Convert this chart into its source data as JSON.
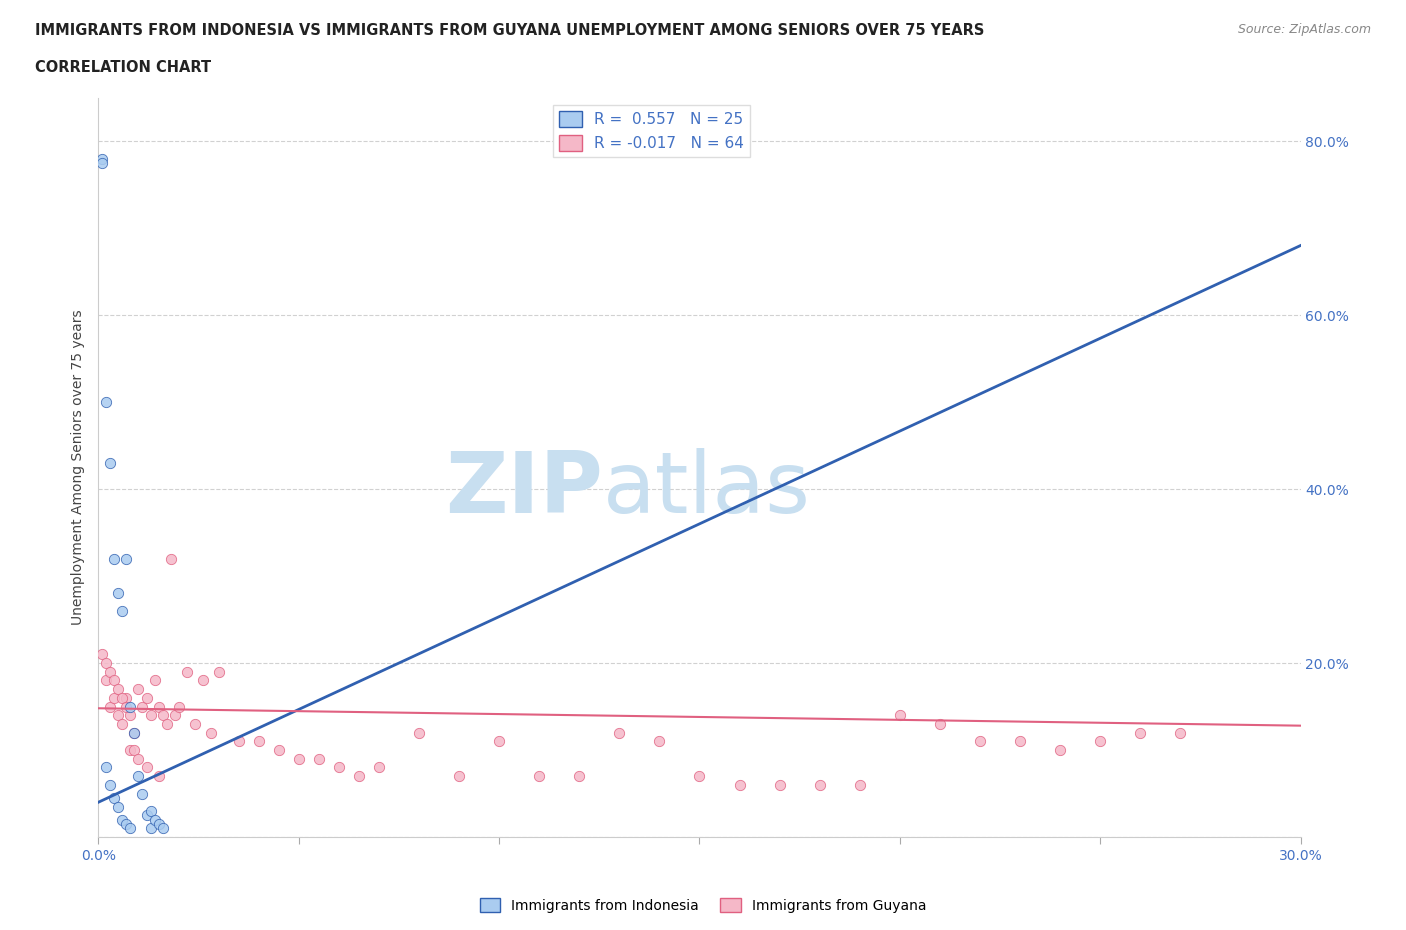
{
  "title_line1": "IMMIGRANTS FROM INDONESIA VS IMMIGRANTS FROM GUYANA UNEMPLOYMENT AMONG SENIORS OVER 75 YEARS",
  "title_line2": "CORRELATION CHART",
  "source": "Source: ZipAtlas.com",
  "ylabel": "Unemployment Among Seniors over 75 years",
  "xlim": [
    0.0,
    0.3
  ],
  "ylim": [
    0.0,
    0.85
  ],
  "R_indonesia": 0.557,
  "N_indonesia": 25,
  "R_guyana": -0.017,
  "N_guyana": 64,
  "color_indonesia": "#aaccf0",
  "color_guyana": "#f5b8c8",
  "line_color_indonesia": "#3060b0",
  "line_color_guyana": "#e06080",
  "watermark_zip": "ZIP",
  "watermark_atlas": "atlas",
  "watermark_color_zip": "#c8dff0",
  "watermark_color_atlas": "#c8dff0",
  "indonesia_x": [
    0.012,
    0.013,
    0.001,
    0.001,
    0.002,
    0.003,
    0.004,
    0.005,
    0.006,
    0.007,
    0.008,
    0.009,
    0.01,
    0.011,
    0.013,
    0.014,
    0.015,
    0.016,
    0.002,
    0.003,
    0.004,
    0.005,
    0.006,
    0.007,
    0.008
  ],
  "indonesia_y": [
    0.025,
    0.01,
    0.78,
    0.775,
    0.5,
    0.43,
    0.32,
    0.28,
    0.26,
    0.32,
    0.15,
    0.12,
    0.07,
    0.05,
    0.03,
    0.02,
    0.015,
    0.01,
    0.08,
    0.06,
    0.045,
    0.035,
    0.02,
    0.015,
    0.01
  ],
  "guyana_x": [
    0.002,
    0.003,
    0.004,
    0.005,
    0.006,
    0.007,
    0.008,
    0.009,
    0.01,
    0.011,
    0.012,
    0.013,
    0.014,
    0.015,
    0.016,
    0.017,
    0.018,
    0.019,
    0.02,
    0.022,
    0.024,
    0.026,
    0.028,
    0.03,
    0.035,
    0.04,
    0.045,
    0.05,
    0.055,
    0.06,
    0.065,
    0.07,
    0.08,
    0.09,
    0.1,
    0.11,
    0.12,
    0.13,
    0.14,
    0.15,
    0.16,
    0.17,
    0.18,
    0.19,
    0.2,
    0.21,
    0.22,
    0.23,
    0.24,
    0.25,
    0.26,
    0.27,
    0.001,
    0.002,
    0.003,
    0.004,
    0.005,
    0.006,
    0.007,
    0.008,
    0.009,
    0.01,
    0.012,
    0.015
  ],
  "guyana_y": [
    0.18,
    0.15,
    0.16,
    0.14,
    0.13,
    0.16,
    0.14,
    0.12,
    0.17,
    0.15,
    0.16,
    0.14,
    0.18,
    0.15,
    0.14,
    0.13,
    0.32,
    0.14,
    0.15,
    0.19,
    0.13,
    0.18,
    0.12,
    0.19,
    0.11,
    0.11,
    0.1,
    0.09,
    0.09,
    0.08,
    0.07,
    0.08,
    0.12,
    0.07,
    0.11,
    0.07,
    0.07,
    0.12,
    0.11,
    0.07,
    0.06,
    0.06,
    0.06,
    0.06,
    0.14,
    0.13,
    0.11,
    0.11,
    0.1,
    0.11,
    0.12,
    0.12,
    0.21,
    0.2,
    0.19,
    0.18,
    0.17,
    0.16,
    0.15,
    0.1,
    0.1,
    0.09,
    0.08,
    0.07
  ],
  "indonesia_line_x": [
    0.0,
    0.3
  ],
  "indonesia_line_y": [
    0.04,
    0.68
  ],
  "guyana_line_x": [
    0.0,
    0.3
  ],
  "guyana_line_y": [
    0.148,
    0.128
  ]
}
